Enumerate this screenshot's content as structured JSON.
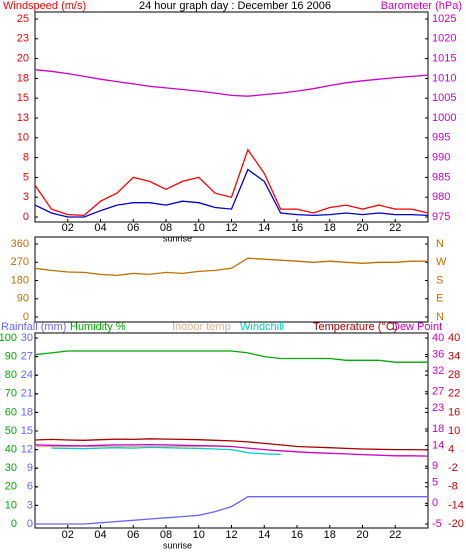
{
  "chart_data": [
    {
      "type": "line",
      "title": "24 hour graph day : December 16 2006",
      "x": [
        0,
        1,
        2,
        3,
        4,
        5,
        6,
        7,
        8,
        9,
        10,
        11,
        12,
        13,
        14,
        15,
        16,
        17,
        18,
        19,
        20,
        21,
        22,
        23,
        24
      ],
      "xlim": [
        0,
        24
      ],
      "xticks": [
        {
          "value": 2,
          "label": "02"
        },
        {
          "value": 4,
          "label": "04"
        },
        {
          "value": 6,
          "label": "06"
        },
        {
          "value": 8,
          "label": "08"
        },
        {
          "value": 10,
          "label": "10"
        },
        {
          "value": 12,
          "label": "12"
        },
        {
          "value": 14,
          "label": "14"
        },
        {
          "value": 16,
          "label": "16"
        },
        {
          "value": 18,
          "label": "18"
        },
        {
          "value": 20,
          "label": "20"
        },
        {
          "value": 22,
          "label": "22"
        }
      ],
      "ylim": [
        0,
        25
      ],
      "yticks": [
        0,
        {
          "value": 2.5,
          "label": "3"
        },
        5,
        {
          "value": 7.5,
          "label": "8"
        },
        10,
        {
          "value": 12.5,
          "label": "13"
        },
        15,
        {
          "value": 17.5,
          "label": "18"
        },
        20,
        {
          "value": 22.5,
          "label": "23"
        },
        25
      ],
      "ycolor": "#ff0000",
      "y2lim": [
        975,
        1025
      ],
      "y2ticks": [
        975,
        980,
        985,
        990,
        995,
        1000,
        1005,
        1010,
        1015,
        1020,
        1025
      ],
      "y2color": "#cc00cc",
      "annotations": [
        {
          "text": "sunrise",
          "x": 8.7
        }
      ],
      "series": [
        {
          "name": "Windspeed (m/s)",
          "color": "#ff0000",
          "values": [
            4,
            1,
            0.3,
            0.2,
            2,
            3,
            5,
            4.5,
            3.5,
            4.5,
            5,
            3,
            2.5,
            8.5,
            5.5,
            1,
            1,
            0.5,
            1.2,
            1.5,
            1,
            1.5,
            1,
            1,
            0.5
          ]
        },
        {
          "color": "#0000cc",
          "values": [
            1.5,
            0.5,
            0,
            0,
            0.8,
            1.5,
            1.8,
            1.8,
            1.5,
            2,
            1.8,
            1.2,
            1,
            6,
            4.5,
            0.5,
            0.3,
            0.2,
            0.3,
            0.5,
            0.3,
            0.5,
            0.3,
            0.3,
            0.2
          ]
        },
        {
          "name": "Barometer (hPa)",
          "color": "#cc00cc",
          "axis": "y2",
          "values": [
            1012.2,
            1011.8,
            1011.2,
            1010.5,
            1009.8,
            1009.2,
            1008.6,
            1008.0,
            1007.6,
            1007.2,
            1006.8,
            1006.3,
            1005.7,
            1005.5,
            1005.9,
            1006.3,
            1006.8,
            1007.4,
            1008.2,
            1008.9,
            1009.4,
            1009.8,
            1010.2,
            1010.5,
            1010.8
          ]
        }
      ]
    },
    {
      "type": "line",
      "x": [
        0,
        1,
        2,
        3,
        4,
        5,
        6,
        7,
        8,
        9,
        10,
        11,
        12,
        13,
        14,
        15,
        16,
        17,
        18,
        19,
        20,
        21,
        22,
        23,
        24
      ],
      "xlim": [
        0,
        24
      ],
      "ylim": [
        0,
        360
      ],
      "yticks": [
        0,
        90,
        180,
        270,
        360
      ],
      "ycolor": "#c07000",
      "y2lim": [
        0,
        360
      ],
      "y2ticks": [
        {
          "value": 0,
          "label": "N"
        },
        {
          "value": 90,
          "label": "E"
        },
        {
          "value": 180,
          "label": "S"
        },
        {
          "value": 270,
          "label": "W"
        },
        {
          "value": 360,
          "label": "N"
        }
      ],
      "y2color": "#c07000",
      "series": [
        {
          "color": "#c07000",
          "values": [
            240,
            230,
            222,
            220,
            210,
            205,
            215,
            210,
            220,
            215,
            225,
            230,
            240,
            290,
            285,
            280,
            275,
            270,
            275,
            270,
            265,
            270,
            270,
            275,
            275
          ]
        }
      ]
    },
    {
      "type": "line",
      "x": [
        0,
        1,
        2,
        3,
        4,
        5,
        6,
        7,
        8,
        9,
        10,
        11,
        12,
        13,
        14,
        15,
        16,
        17,
        18,
        19,
        20,
        21,
        22,
        23,
        24
      ],
      "xlim": [
        0,
        24
      ],
      "xticks": [
        {
          "value": 2,
          "label": "02"
        },
        {
          "value": 4,
          "label": "04"
        },
        {
          "value": 6,
          "label": "06"
        },
        {
          "value": 8,
          "label": "08"
        },
        {
          "value": 10,
          "label": "10"
        },
        {
          "value": 12,
          "label": "12"
        },
        {
          "value": 14,
          "label": "14"
        },
        {
          "value": 16,
          "label": "16"
        },
        {
          "value": 18,
          "label": "18"
        },
        {
          "value": 20,
          "label": "20"
        },
        {
          "value": 22,
          "label": "22"
        }
      ],
      "ylim": [
        0,
        100
      ],
      "yticks": [
        0,
        10,
        20,
        30,
        40,
        50,
        60,
        70,
        80,
        90,
        100
      ],
      "ycolor": "#00aa00",
      "rainlim": [
        0,
        30
      ],
      "rainticks": [
        0,
        3,
        6,
        9,
        12,
        15,
        18,
        21,
        24,
        27,
        30
      ],
      "raincolor": "#6666ff",
      "y2lim": [
        -20,
        40
      ],
      "y2ticks": [
        -20,
        -14,
        -8,
        -2,
        4,
        10,
        16,
        22,
        28,
        34,
        40
      ],
      "y2color": "#cc0000",
      "y3lim": [
        -5,
        40
      ],
      "y3ticks": [
        -5,
        0,
        5,
        9,
        14,
        18,
        23,
        27,
        32,
        36,
        40
      ],
      "y3color": "#cc00cc",
      "annotations": [
        {
          "text": "sunrise",
          "x": 8.7
        }
      ],
      "series": [
        {
          "name": "Rainfall (mm)",
          "color": "#6666ff",
          "axis": "rain",
          "values": [
            0,
            0,
            0,
            0,
            0.2,
            0.4,
            0.6,
            0.8,
            1,
            1.2,
            1.4,
            2,
            2.8,
            4.4,
            4.4,
            4.4,
            4.4,
            4.4,
            4.4,
            4.4,
            4.4,
            4.4,
            4.4,
            4.4,
            4.4
          ]
        },
        {
          "name": "Humidity %",
          "color": "#00aa00",
          "values": [
            91,
            92,
            93,
            93,
            93,
            93,
            93,
            93,
            93,
            93,
            93,
            93,
            93,
            92,
            90,
            89,
            89,
            89,
            89,
            88,
            88,
            88,
            87,
            87,
            87
          ]
        },
        {
          "name": "Indoor temp",
          "color": "#e0b090",
          "axis": "y2",
          "values": [
            5,
            5,
            5,
            5,
            5,
            5,
            5,
            5,
            5,
            5,
            5,
            5,
            5,
            null,
            null,
            null,
            null,
            null,
            null,
            null,
            null,
            null,
            null,
            null,
            null
          ]
        },
        {
          "name": "Windchill",
          "color": "#00cccc",
          "axis": "y2",
          "values": [
            null,
            4.5,
            4.4,
            4.3,
            4.5,
            4.6,
            4.5,
            4.7,
            4.6,
            4.5,
            4.4,
            4.2,
            4,
            3,
            2.6,
            2.5,
            null,
            null,
            null,
            null,
            null,
            null,
            null,
            null,
            null
          ]
        },
        {
          "name": "Temperature (°C)",
          "color": "#aa0000",
          "axis": "y2",
          "values": [
            7.1,
            7.3,
            7.1,
            7.0,
            7.2,
            7.4,
            7.3,
            7.5,
            7.4,
            7.3,
            7.2,
            7.0,
            6.8,
            6.5,
            6.0,
            5.5,
            5.0,
            4.8,
            4.6,
            4.4,
            4.2,
            4.1,
            4.0,
            4.0,
            3.9
          ]
        },
        {
          "name": "Dew Point",
          "color": "#cc00cc",
          "axis": "y2",
          "values": [
            5.5,
            5.4,
            5.3,
            5.2,
            5.4,
            5.5,
            5.5,
            5.6,
            5.5,
            5.4,
            5.3,
            5.2,
            5.0,
            4.5,
            4.0,
            3.6,
            3.3,
            3.0,
            2.8,
            2.6,
            2.4,
            2.2,
            2.0,
            2.0,
            1.9
          ]
        }
      ]
    }
  ]
}
